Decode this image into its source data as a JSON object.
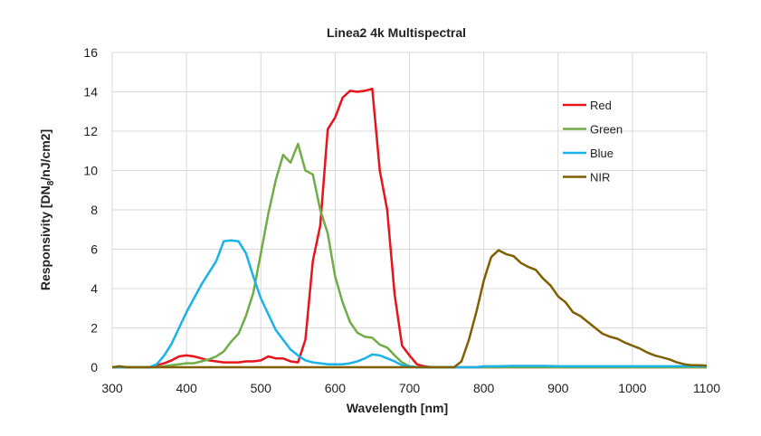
{
  "chart_data": {
    "type": "line",
    "title": "Linea2 4k Multispectral",
    "xlabel": "Wavelength [nm]",
    "ylabel_main": "Responsivity [DN",
    "ylabel_sub": "8",
    "ylabel_end": "/nJ/cm2]",
    "xlim": [
      300,
      1100
    ],
    "ylim": [
      0,
      16
    ],
    "xticks": [
      300,
      400,
      500,
      600,
      700,
      800,
      900,
      1000,
      1100
    ],
    "yticks": [
      0,
      2,
      4,
      6,
      8,
      10,
      12,
      14,
      16
    ],
    "grid": true,
    "legend_position": "top-right",
    "series": [
      {
        "name": "Red",
        "color": "#e8141b",
        "points": [
          [
            300,
            0
          ],
          [
            350,
            0
          ],
          [
            370,
            0.2
          ],
          [
            380,
            0.35
          ],
          [
            390,
            0.55
          ],
          [
            400,
            0.6
          ],
          [
            410,
            0.55
          ],
          [
            420,
            0.45
          ],
          [
            430,
            0.35
          ],
          [
            440,
            0.3
          ],
          [
            450,
            0.25
          ],
          [
            460,
            0.25
          ],
          [
            470,
            0.25
          ],
          [
            480,
            0.3
          ],
          [
            490,
            0.3
          ],
          [
            500,
            0.35
          ],
          [
            510,
            0.55
          ],
          [
            520,
            0.45
          ],
          [
            530,
            0.45
          ],
          [
            540,
            0.3
          ],
          [
            550,
            0.25
          ],
          [
            560,
            1.4
          ],
          [
            570,
            5.4
          ],
          [
            580,
            7.2
          ],
          [
            590,
            12.1
          ],
          [
            600,
            12.7
          ],
          [
            610,
            13.7
          ],
          [
            620,
            14.05
          ],
          [
            630,
            14.0
          ],
          [
            640,
            14.05
          ],
          [
            650,
            14.15
          ],
          [
            660,
            10.0
          ],
          [
            670,
            8.0
          ],
          [
            680,
            3.7
          ],
          [
            690,
            1.1
          ],
          [
            700,
            0.6
          ],
          [
            710,
            0.15
          ],
          [
            720,
            0.05
          ],
          [
            730,
            0
          ],
          [
            1100,
            0
          ]
        ]
      },
      {
        "name": "Green",
        "color": "#70ad47",
        "points": [
          [
            300,
            0
          ],
          [
            360,
            0
          ],
          [
            370,
            0.05
          ],
          [
            380,
            0.1
          ],
          [
            390,
            0.15
          ],
          [
            400,
            0.2
          ],
          [
            410,
            0.2
          ],
          [
            420,
            0.3
          ],
          [
            430,
            0.4
          ],
          [
            440,
            0.55
          ],
          [
            450,
            0.8
          ],
          [
            460,
            1.3
          ],
          [
            470,
            1.7
          ],
          [
            480,
            2.6
          ],
          [
            490,
            3.8
          ],
          [
            500,
            5.8
          ],
          [
            510,
            7.8
          ],
          [
            520,
            9.5
          ],
          [
            530,
            10.8
          ],
          [
            540,
            10.4
          ],
          [
            550,
            11.35
          ],
          [
            560,
            10.0
          ],
          [
            570,
            9.8
          ],
          [
            580,
            8.0
          ],
          [
            590,
            6.8
          ],
          [
            600,
            4.6
          ],
          [
            610,
            3.3
          ],
          [
            620,
            2.3
          ],
          [
            630,
            1.75
          ],
          [
            640,
            1.55
          ],
          [
            650,
            1.5
          ],
          [
            660,
            1.15
          ],
          [
            670,
            1.0
          ],
          [
            680,
            0.6
          ],
          [
            690,
            0.25
          ],
          [
            700,
            0.05
          ],
          [
            710,
            0
          ],
          [
            1100,
            0
          ]
        ]
      },
      {
        "name": "Blue",
        "color": "#1ab2e8",
        "points": [
          [
            300,
            0
          ],
          [
            350,
            0
          ],
          [
            360,
            0.15
          ],
          [
            370,
            0.6
          ],
          [
            380,
            1.2
          ],
          [
            390,
            2.0
          ],
          [
            400,
            2.8
          ],
          [
            410,
            3.5
          ],
          [
            420,
            4.2
          ],
          [
            430,
            4.8
          ],
          [
            440,
            5.4
          ],
          [
            450,
            6.4
          ],
          [
            460,
            6.45
          ],
          [
            470,
            6.4
          ],
          [
            480,
            5.8
          ],
          [
            490,
            4.6
          ],
          [
            500,
            3.5
          ],
          [
            510,
            2.7
          ],
          [
            520,
            1.9
          ],
          [
            530,
            1.4
          ],
          [
            540,
            0.9
          ],
          [
            550,
            0.6
          ],
          [
            560,
            0.35
          ],
          [
            570,
            0.25
          ],
          [
            580,
            0.2
          ],
          [
            590,
            0.15
          ],
          [
            600,
            0.15
          ],
          [
            610,
            0.15
          ],
          [
            620,
            0.2
          ],
          [
            630,
            0.3
          ],
          [
            640,
            0.45
          ],
          [
            650,
            0.65
          ],
          [
            660,
            0.6
          ],
          [
            670,
            0.45
          ],
          [
            680,
            0.3
          ],
          [
            690,
            0.1
          ],
          [
            700,
            0.05
          ],
          [
            710,
            0
          ],
          [
            790,
            0
          ],
          [
            800,
            0.05
          ],
          [
            820,
            0.05
          ],
          [
            840,
            0.07
          ],
          [
            860,
            0.07
          ],
          [
            880,
            0.07
          ],
          [
            900,
            0.05
          ],
          [
            950,
            0.05
          ],
          [
            1000,
            0.05
          ],
          [
            1100,
            0.05
          ]
        ]
      },
      {
        "name": "NIR",
        "color": "#7f5f00",
        "points": [
          [
            300,
            0
          ],
          [
            310,
            0.05
          ],
          [
            320,
            0
          ],
          [
            760,
            0
          ],
          [
            770,
            0.3
          ],
          [
            780,
            1.4
          ],
          [
            790,
            2.8
          ],
          [
            800,
            4.4
          ],
          [
            810,
            5.6
          ],
          [
            820,
            5.95
          ],
          [
            830,
            5.75
          ],
          [
            840,
            5.65
          ],
          [
            850,
            5.3
          ],
          [
            860,
            5.1
          ],
          [
            870,
            4.95
          ],
          [
            880,
            4.5
          ],
          [
            890,
            4.15
          ],
          [
            900,
            3.6
          ],
          [
            910,
            3.3
          ],
          [
            920,
            2.8
          ],
          [
            930,
            2.6
          ],
          [
            940,
            2.3
          ],
          [
            950,
            2.0
          ],
          [
            960,
            1.7
          ],
          [
            970,
            1.55
          ],
          [
            980,
            1.45
          ],
          [
            990,
            1.25
          ],
          [
            1000,
            1.1
          ],
          [
            1010,
            0.95
          ],
          [
            1020,
            0.75
          ],
          [
            1030,
            0.6
          ],
          [
            1040,
            0.5
          ],
          [
            1050,
            0.4
          ],
          [
            1060,
            0.25
          ],
          [
            1070,
            0.15
          ],
          [
            1080,
            0.1
          ],
          [
            1090,
            0.1
          ],
          [
            1100,
            0.08
          ]
        ]
      }
    ]
  }
}
